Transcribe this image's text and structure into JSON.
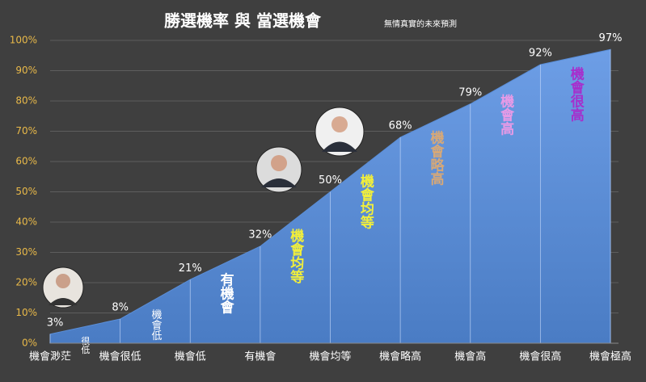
{
  "chart_data": {
    "type": "area",
    "title": "勝選機率 與 當選機會",
    "subtitle": "無情真實的未來預測",
    "categories": [
      "機會渺茫",
      "機會很低",
      "機會低",
      "有機會",
      "機會均等",
      "機會略高",
      "機會高",
      "機會很高",
      "機會極高"
    ],
    "values": [
      3,
      8,
      21,
      32,
      50,
      68,
      79,
      92,
      97
    ],
    "value_labels": [
      "3%",
      "8%",
      "21%",
      "32%",
      "50%",
      "68%",
      "79%",
      "92%",
      "97%"
    ],
    "color": "#5a8ed8",
    "ylim": [
      0,
      100
    ],
    "yticks": [
      {
        "value": 0,
        "label": "0%"
      },
      {
        "value": 10,
        "label": "10%"
      },
      {
        "value": 20,
        "label": "20%"
      },
      {
        "value": 30,
        "label": "30%"
      },
      {
        "value": 40,
        "label": "40%"
      },
      {
        "value": 50,
        "label": "50%"
      },
      {
        "value": 60,
        "label": "60%"
      },
      {
        "value": 70,
        "label": "70%"
      },
      {
        "value": 80,
        "label": "80%"
      },
      {
        "value": 90,
        "label": "90%"
      },
      {
        "value": 100,
        "label": "100%"
      }
    ],
    "grid": true,
    "annotations": [
      {
        "text": "很低",
        "color": "#ffffff"
      },
      {
        "text": "機會低",
        "color": "#ffffff"
      },
      {
        "text": "有機會",
        "color": "#ffffff"
      },
      {
        "text": "機會均等",
        "color": "#f2ef3a"
      },
      {
        "text": "機會均等",
        "color": "#f2ef3a"
      },
      {
        "text": "機會略高",
        "color": "#d6a878"
      },
      {
        "text": "機會高",
        "color": "#e89ae6"
      },
      {
        "text": "機會很高",
        "color": "#a62fcc"
      }
    ]
  }
}
